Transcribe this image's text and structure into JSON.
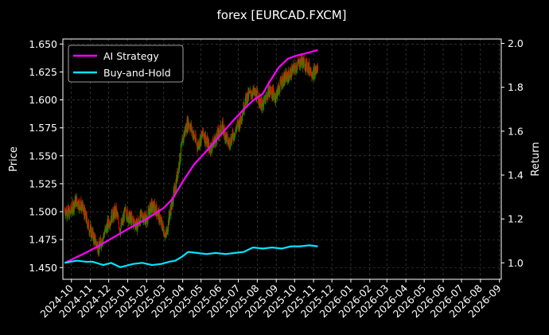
{
  "chart_data": {
    "type": "line",
    "title": "forex [EURCAD.FXCM]",
    "ylabel_left": "Price",
    "ylabel_right": "Return",
    "xlabel": "",
    "ylim_left": [
      1.4395,
      1.6545
    ],
    "ylim_right": [
      0.925,
      2.02
    ],
    "y_ticks_left": [
      "1.450",
      "1.475",
      "1.500",
      "1.525",
      "1.550",
      "1.575",
      "1.600",
      "1.625",
      "1.650"
    ],
    "y_ticks_right": [
      "1.0",
      "1.2",
      "1.4",
      "1.6",
      "1.8",
      "2.0"
    ],
    "x_ticks": [
      "2024-10",
      "2024-11",
      "2024-12",
      "2025-01",
      "2025-02",
      "2025-03",
      "2025-04",
      "2025-05",
      "2025-06",
      "2025-07",
      "2025-08",
      "2025-09",
      "2025-10",
      "2025-11",
      "2025-12",
      "2026-01",
      "2026-02",
      "2026-03",
      "2026-04",
      "2026-05",
      "2026-06",
      "2026-07",
      "2026-08",
      "2026-09"
    ],
    "grid": true,
    "legend_position": "top-left",
    "colors": {
      "ai_strategy": "#ff00ff",
      "buy_and_hold": "#00e5ff",
      "candle_up": "#00a000",
      "candle_down": "#ff0000"
    },
    "price_anchors": {
      "dates": [
        "2024-09-20",
        "2024-09-28",
        "2024-10-08",
        "2024-10-18",
        "2024-10-30",
        "2024-11-08",
        "2024-11-15",
        "2024-11-22",
        "2024-11-29",
        "2024-12-06",
        "2024-12-13",
        "2024-12-20",
        "2024-12-28",
        "2025-01-08",
        "2025-01-17",
        "2025-01-24",
        "2025-02-01",
        "2025-02-08",
        "2025-02-18",
        "2025-02-26",
        "2025-03-05",
        "2025-03-10",
        "2025-03-20",
        "2025-03-28",
        "2025-04-03",
        "2025-04-10",
        "2025-04-18",
        "2025-04-25",
        "2025-05-05",
        "2025-05-15",
        "2025-05-25",
        "2025-06-05",
        "2025-06-15",
        "2025-06-25",
        "2025-07-05",
        "2025-07-12",
        "2025-07-22",
        "2025-08-01",
        "2025-08-10",
        "2025-08-20",
        "2025-08-31",
        "2025-09-10",
        "2025-09-22",
        "2025-10-02",
        "2025-10-12",
        "2025-10-22",
        "2025-11-01",
        "2025-11-08"
      ],
      "values": [
        1.502,
        1.498,
        1.51,
        1.505,
        1.486,
        1.475,
        1.467,
        1.478,
        1.488,
        1.496,
        1.5,
        1.484,
        1.5,
        1.492,
        1.488,
        1.497,
        1.493,
        1.505,
        1.501,
        1.488,
        1.478,
        1.496,
        1.522,
        1.55,
        1.569,
        1.581,
        1.57,
        1.559,
        1.57,
        1.556,
        1.565,
        1.576,
        1.561,
        1.571,
        1.583,
        1.599,
        1.607,
        1.604,
        1.594,
        1.609,
        1.603,
        1.617,
        1.622,
        1.629,
        1.635,
        1.63,
        1.624,
        1.628
      ]
    },
    "series": [
      {
        "name": "AI Strategy",
        "dates": [
          "2024-09-20",
          "2024-10-20",
          "2024-11-10",
          "2024-12-05",
          "2025-01-05",
          "2025-02-01",
          "2025-03-01",
          "2025-03-15",
          "2025-04-01",
          "2025-04-20",
          "2025-05-10",
          "2025-06-01",
          "2025-06-20",
          "2025-07-10",
          "2025-07-25",
          "2025-08-10",
          "2025-08-20",
          "2025-09-05",
          "2025-09-20",
          "2025-10-05",
          "2025-10-20",
          "2025-11-08"
        ],
        "values": [
          1.0,
          1.04,
          1.07,
          1.11,
          1.16,
          1.2,
          1.25,
          1.29,
          1.37,
          1.45,
          1.51,
          1.58,
          1.64,
          1.7,
          1.74,
          1.77,
          1.82,
          1.89,
          1.93,
          1.945,
          1.955,
          1.97
        ]
      },
      {
        "name": "Buy-and-Hold",
        "dates": [
          "2024-09-20",
          "2024-10-10",
          "2024-10-25",
          "2024-11-05",
          "2024-11-22",
          "2024-12-05",
          "2024-12-20",
          "2025-01-10",
          "2025-01-25",
          "2025-02-10",
          "2025-02-25",
          "2025-03-10",
          "2025-03-20",
          "2025-04-01",
          "2025-04-10",
          "2025-04-25",
          "2025-05-10",
          "2025-05-25",
          "2025-06-10",
          "2025-06-25",
          "2025-07-10",
          "2025-07-25",
          "2025-08-10",
          "2025-08-25",
          "2025-09-10",
          "2025-09-25",
          "2025-10-10",
          "2025-10-25",
          "2025-11-08"
        ],
        "values": [
          1.0,
          1.01,
          1.005,
          1.005,
          0.99,
          1.0,
          0.98,
          0.995,
          1.0,
          0.99,
          0.995,
          1.005,
          1.01,
          1.03,
          1.05,
          1.045,
          1.04,
          1.045,
          1.04,
          1.045,
          1.05,
          1.07,
          1.065,
          1.07,
          1.065,
          1.075,
          1.075,
          1.08,
          1.075
        ]
      }
    ]
  }
}
